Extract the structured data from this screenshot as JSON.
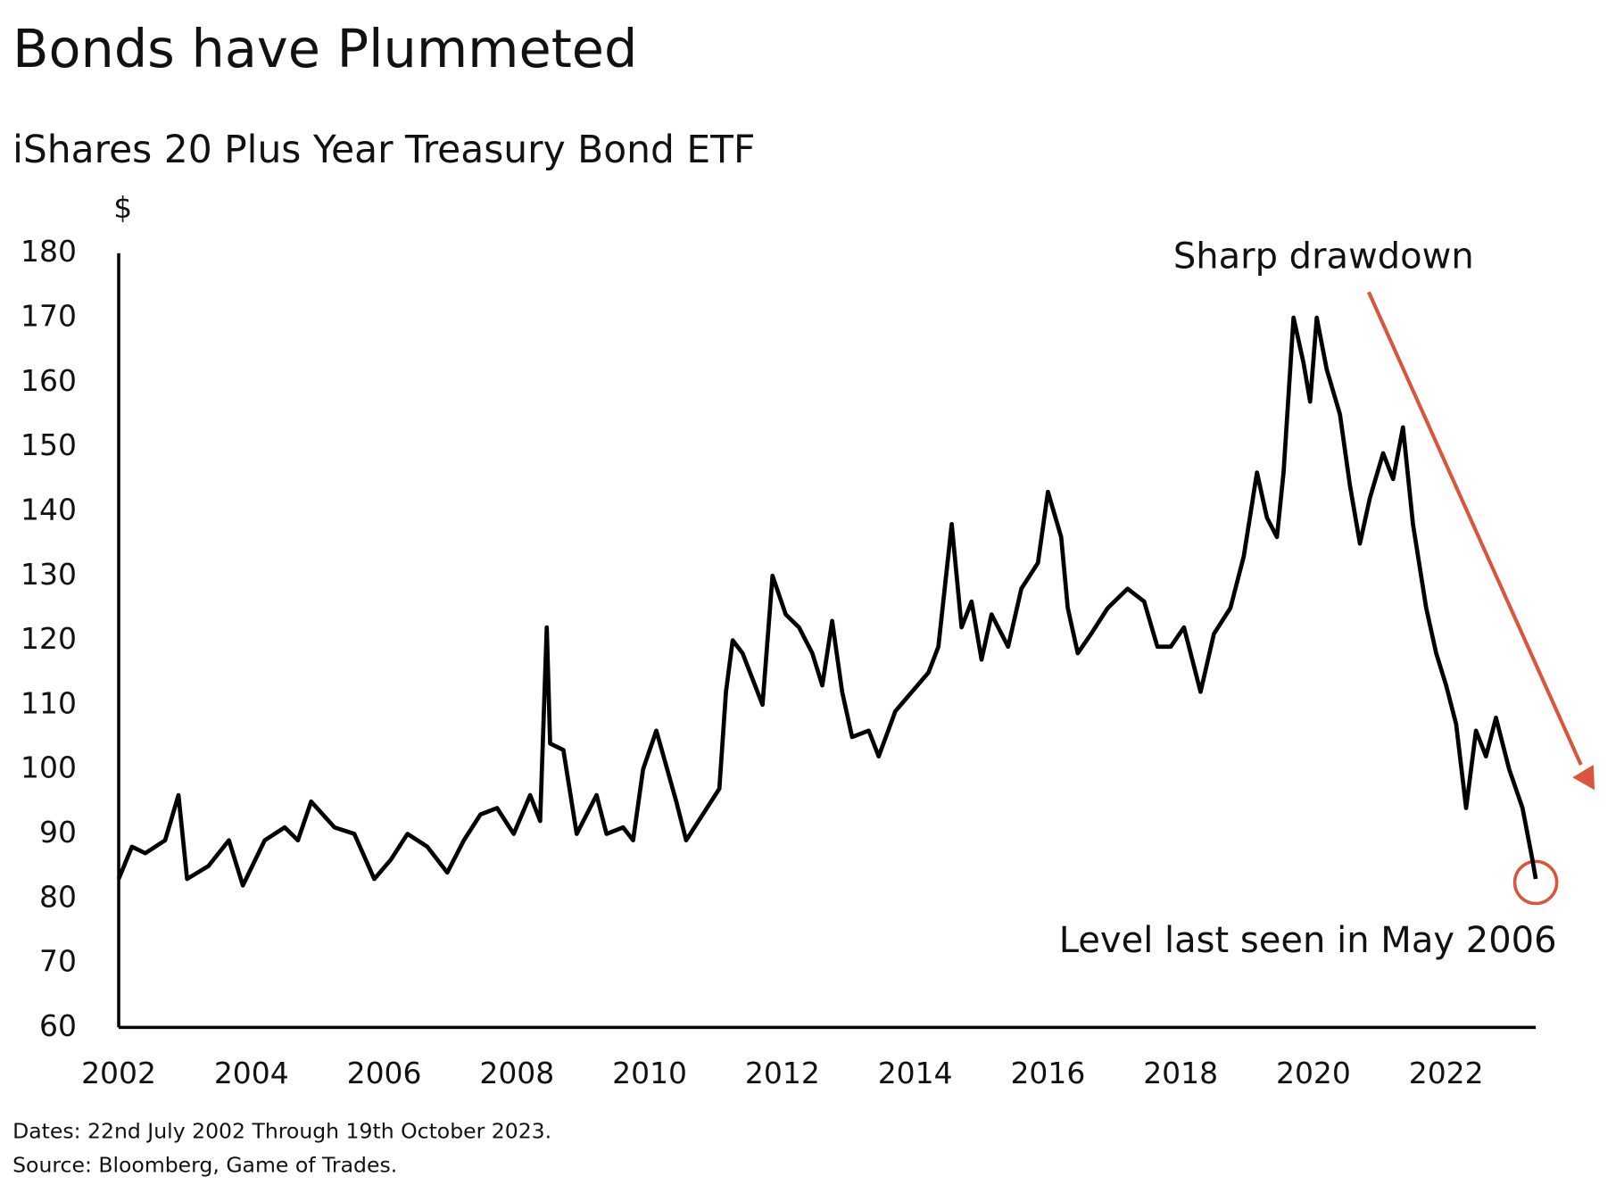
{
  "chart_data": {
    "type": "line",
    "title": "Bonds have Plummeted",
    "subtitle": "iShares 20 Plus Year Treasury Bond ETF",
    "y_unit": "$",
    "color": "#000000",
    "line_width": 4,
    "x": [
      2002.0,
      2002.2,
      2002.4,
      2002.7,
      2002.9,
      2003.03,
      2003.35,
      2003.66,
      2003.87,
      2004.2,
      2004.5,
      2004.7,
      2004.9,
      2005.25,
      2005.55,
      2005.85,
      2006.1,
      2006.35,
      2006.65,
      2006.95,
      2007.2,
      2007.45,
      2007.7,
      2007.95,
      2008.2,
      2008.35,
      2008.45,
      2008.5,
      2008.7,
      2008.9,
      2009.2,
      2009.35,
      2009.6,
      2009.75,
      2009.9,
      2010.1,
      2010.4,
      2010.55,
      2010.8,
      2011.05,
      2011.15,
      2011.25,
      2011.4,
      2011.7,
      2011.85,
      2012.05,
      2012.25,
      2012.45,
      2012.6,
      2012.75,
      2012.9,
      2013.05,
      2013.3,
      2013.45,
      2013.7,
      2013.95,
      2014.2,
      2014.35,
      2014.55,
      2014.7,
      2014.85,
      2015.0,
      2015.15,
      2015.4,
      2015.6,
      2015.85,
      2016.0,
      2016.2,
      2016.3,
      2016.45,
      2016.65,
      2016.9,
      2017.2,
      2017.45,
      2017.65,
      2017.85,
      2018.05,
      2018.3,
      2018.5,
      2018.75,
      2018.95,
      2019.15,
      2019.3,
      2019.45,
      2019.55,
      2019.7,
      2019.85,
      2019.95,
      2020.05,
      2020.2,
      2020.4,
      2020.55,
      2020.7,
      2020.85,
      2021.05,
      2021.2,
      2021.35,
      2021.5,
      2021.7,
      2021.85,
      2022.0,
      2022.15,
      2022.3,
      2022.45,
      2022.6,
      2022.75,
      2022.95,
      2023.15,
      2023.3,
      2023.35
    ],
    "values": [
      83,
      88,
      87,
      89,
      96,
      83,
      85,
      89,
      82,
      89,
      91,
      89,
      95,
      91,
      90,
      83,
      86,
      90,
      88,
      84,
      89,
      93,
      94,
      90,
      96,
      92,
      122,
      104,
      103,
      90,
      96,
      90,
      91,
      89,
      100,
      106,
      95,
      89,
      93,
      97,
      112,
      120,
      118,
      110,
      130,
      124,
      122,
      118,
      113,
      123,
      112,
      105,
      106,
      102,
      109,
      112,
      115,
      119,
      138,
      122,
      126,
      117,
      124,
      119,
      128,
      132,
      143,
      136,
      125,
      118,
      121,
      125,
      128,
      126,
      119,
      119,
      122,
      112,
      121,
      125,
      133,
      146,
      139,
      136,
      146,
      170,
      163,
      157,
      170,
      162,
      155,
      144,
      135,
      142,
      149,
      145,
      153,
      138,
      125,
      118,
      113,
      107,
      94,
      106,
      102,
      108,
      100,
      94,
      86,
      83
    ],
    "xlim": [
      2002,
      2023.35
    ],
    "xticks": [
      2002,
      2004,
      2006,
      2008,
      2010,
      2012,
      2014,
      2016,
      2018,
      2020,
      2022
    ],
    "ylim": [
      60,
      180
    ],
    "yticks": [
      60,
      70,
      80,
      90,
      100,
      110,
      120,
      130,
      140,
      150,
      160,
      170,
      180
    ],
    "grid": false,
    "annotations": [
      "Sharp drawdown",
      "Level last seen in May 2006"
    ],
    "notes": [
      "Dates: 22nd July 2002 Through 19th October 2023.",
      "Source: Bloomberg, Game of Trades."
    ]
  }
}
